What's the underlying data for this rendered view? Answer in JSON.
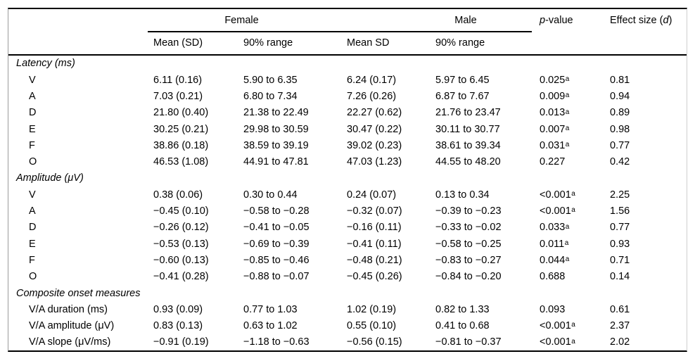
{
  "table": {
    "header": {
      "group_female": "Female",
      "group_male": "Male",
      "p_italic": "p",
      "p_rest": "-value",
      "effect_pre": "Effect size (",
      "effect_d": "d",
      "effect_post": ")",
      "sub": [
        "Mean (SD)",
        "90% range",
        "Mean SD",
        "90% range"
      ]
    },
    "sections": [
      {
        "label": "Latency (ms)",
        "rows": [
          {
            "label": "V",
            "f_mean": "6.11 (0.16)",
            "f_range": "5.90 to 6.35",
            "m_mean": "6.24 (0.17)",
            "m_range": "5.97 to 6.45",
            "p": "0.025",
            "p_sup": "a",
            "d": "0.81"
          },
          {
            "label": "A",
            "f_mean": "7.03 (0.21)",
            "f_range": "6.80 to 7.34",
            "m_mean": "7.26 (0.26)",
            "m_range": "6.87 to 7.67",
            "p": "0.009",
            "p_sup": "a",
            "d": "0.94"
          },
          {
            "label": "D",
            "f_mean": "21.80 (0.40)",
            "f_range": "21.38 to 22.49",
            "m_mean": "22.27 (0.62)",
            "m_range": "21.76 to 23.47",
            "p": "0.013",
            "p_sup": "a",
            "d": "0.89"
          },
          {
            "label": "E",
            "f_mean": "30.25 (0.21)",
            "f_range": "29.98 to 30.59",
            "m_mean": "30.47 (0.22)",
            "m_range": "30.11 to 30.77",
            "p": "0.007",
            "p_sup": "a",
            "d": "0.98"
          },
          {
            "label": "F",
            "f_mean": "38.86 (0.18)",
            "f_range": "38.59 to 39.19",
            "m_mean": "39.02 (0.23)",
            "m_range": "38.61 to 39.34",
            "p": "0.031",
            "p_sup": "a",
            "d": "0.77"
          },
          {
            "label": "O",
            "f_mean": "46.53 (1.08)",
            "f_range": "44.91 to 47.81",
            "m_mean": "47.03 (1.23)",
            "m_range": "44.55 to 48.20",
            "p": "0.227",
            "p_sup": "",
            "d": "0.42"
          }
        ]
      },
      {
        "label": "Amplitude (μV)",
        "rows": [
          {
            "label": "V",
            "f_mean": "0.38 (0.06)",
            "f_range": "0.30 to 0.44",
            "m_mean": "0.24 (0.07)",
            "m_range": "0.13 to 0.34",
            "p": "<0.001",
            "p_sup": "a",
            "d": "2.25"
          },
          {
            "label": "A",
            "f_mean": "−0.45 (0.10)",
            "f_range": "−0.58 to −0.28",
            "m_mean": "−0.32 (0.07)",
            "m_range": "−0.39 to −0.23",
            "p": "<0.001",
            "p_sup": "a",
            "d": "1.56"
          },
          {
            "label": "D",
            "f_mean": "−0.26 (0.12)",
            "f_range": "−0.41 to −0.05",
            "m_mean": "−0.16 (0.11)",
            "m_range": "−0.33 to −0.02",
            "p": "0.033",
            "p_sup": "a",
            "d": "0.77"
          },
          {
            "label": "E",
            "f_mean": "−0.53 (0.13)",
            "f_range": "−0.69 to −0.39",
            "m_mean": "−0.41 (0.11)",
            "m_range": "−0.58 to −0.25",
            "p": "0.011",
            "p_sup": "a",
            "d": "0.93"
          },
          {
            "label": "F",
            "f_mean": "−0.60 (0.13)",
            "f_range": "−0.85 to −0.46",
            "m_mean": "−0.48 (0.21)",
            "m_range": "−0.83 to −0.27",
            "p": "0.044",
            "p_sup": "a",
            "d": "0.71"
          },
          {
            "label": "O",
            "f_mean": "−0.41 (0.28)",
            "f_range": "−0.88 to −0.07",
            "m_mean": "−0.45 (0.26)",
            "m_range": "−0.84 to −0.20",
            "p": "0.688",
            "p_sup": "",
            "d": "0.14"
          }
        ]
      },
      {
        "label": "Composite onset measures",
        "rows": [
          {
            "label": "V/A duration (ms)",
            "f_mean": "0.93 (0.09)",
            "f_range": "0.77 to 1.03",
            "m_mean": "1.02 (0.19)",
            "m_range": "0.82 to 1.33",
            "p": "0.093",
            "p_sup": "",
            "d": "0.61"
          },
          {
            "label": "V/A amplitude (μV)",
            "f_mean": "0.83 (0.13)",
            "f_range": "0.63 to 1.02",
            "m_mean": "0.55 (0.10)",
            "m_range": "0.41 to 0.68",
            "p": "<0.001",
            "p_sup": "a",
            "d": "2.37"
          },
          {
            "label": "V/A slope (μV/ms)",
            "f_mean": "−0.91 (0.19)",
            "f_range": "−1.18 to −0.63",
            "m_mean": "−0.56 (0.15)",
            "m_range": "−0.81 to −0.37",
            "p": "<0.001",
            "p_sup": "a",
            "d": "2.02"
          }
        ]
      }
    ]
  }
}
